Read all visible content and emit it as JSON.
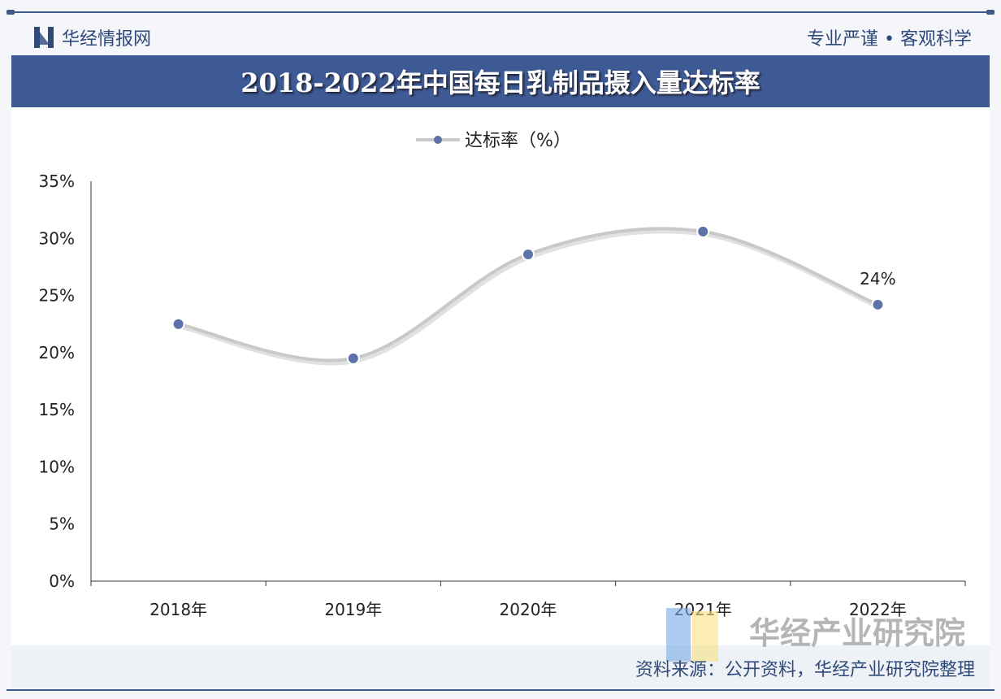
{
  "header": {
    "brand": "华经情报网",
    "slogan": "专业严谨 • 客观科学"
  },
  "footer": {
    "source": "资料来源：公开资料，华经产业研究院整理",
    "watermark": "华经产业研究院"
  },
  "colors": {
    "line": "#c9c9c9",
    "marker": "#5b73a8",
    "title_bg": "#3d5a94"
  },
  "chart_data": {
    "type": "line",
    "title": "2018-2022年中国每日乳制品摄入量达标率",
    "categories": [
      "2018年",
      "2019年",
      "2020年",
      "2021年",
      "2022年"
    ],
    "series": [
      {
        "name": "达标率（%）",
        "values": [
          22.5,
          19.5,
          28.6,
          30.6,
          24.2
        ]
      }
    ],
    "data_labels": [
      {
        "index": 4,
        "text": "24%"
      }
    ],
    "yticks": [
      "0%",
      "5%",
      "10%",
      "15%",
      "20%",
      "25%",
      "30%",
      "35%"
    ],
    "ylim": [
      0,
      35
    ],
    "legend": "top-center",
    "grid": false
  }
}
